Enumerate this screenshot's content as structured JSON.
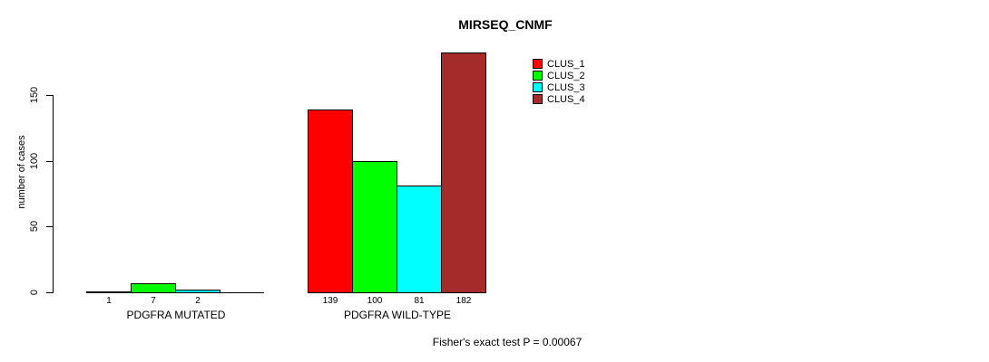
{
  "chart_data": {
    "type": "bar",
    "title": "MIRSEQ_CNMF",
    "ylabel": "number of cases",
    "xlabel": "",
    "yticks": [
      0,
      50,
      100,
      150
    ],
    "ylim": [
      0,
      185
    ],
    "grid": false,
    "legend_position": "top-right",
    "categories": [
      "PDGFRA MUTATED",
      "PDGFRA WILD-TYPE"
    ],
    "series": [
      {
        "name": "CLUS_1",
        "color": "#FF0000",
        "values": [
          1,
          139
        ]
      },
      {
        "name": "CLUS_2",
        "color": "#00FF00",
        "values": [
          7,
          100
        ]
      },
      {
        "name": "CLUS_3",
        "color": "#00FFFF",
        "values": [
          2,
          81
        ]
      },
      {
        "name": "CLUS_4",
        "color": "#A52A2A",
        "values": [
          0,
          182
        ]
      }
    ],
    "bar_value_labels": [
      [
        "1",
        "7",
        "2",
        null
      ],
      [
        "139",
        "100",
        "81",
        "182"
      ]
    ],
    "annotation": "Fisher's exact test P = 0.00067",
    "background_color": "#FFFFFF",
    "bar_border_color": "#000000"
  }
}
